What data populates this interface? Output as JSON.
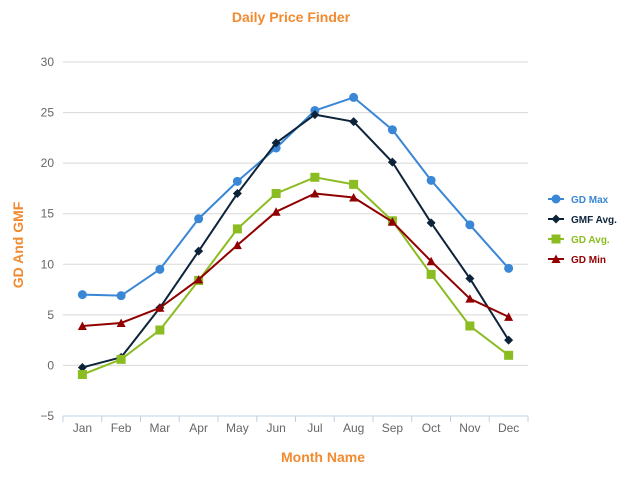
{
  "chart_data": {
    "type": "line",
    "title": "Daily Price Finder",
    "xlabel": "Month Name",
    "ylabel": "GD And GMF",
    "categories": [
      "Jan",
      "Feb",
      "Mar",
      "Apr",
      "May",
      "Jun",
      "Jul",
      "Aug",
      "Sep",
      "Oct",
      "Nov",
      "Dec"
    ],
    "ylim": [
      -5,
      30
    ],
    "yticks": [
      -5,
      0,
      5,
      10,
      15,
      20,
      25,
      30
    ],
    "ytick_labels": [
      "−5",
      "0",
      "5",
      "10",
      "15",
      "20",
      "25",
      "30"
    ],
    "grid": true,
    "legend_position": "right",
    "title_color": "#f28a30",
    "series": [
      {
        "name": "GD Max",
        "color": "#3a87d6",
        "marker": "circle",
        "values": [
          7.0,
          6.9,
          9.5,
          14.5,
          18.2,
          21.5,
          25.2,
          26.5,
          23.3,
          18.3,
          13.9,
          9.6
        ]
      },
      {
        "name": "GMF Avg.",
        "color": "#0d233a",
        "marker": "diamond",
        "values": [
          -0.2,
          0.8,
          5.7,
          11.3,
          17.0,
          22.0,
          24.8,
          24.1,
          20.1,
          14.1,
          8.6,
          2.5
        ]
      },
      {
        "name": "GD Avg.",
        "color": "#8bbc21",
        "marker": "square",
        "values": [
          -0.9,
          0.6,
          3.5,
          8.4,
          13.5,
          17.0,
          18.6,
          17.9,
          14.3,
          9.0,
          3.9,
          1.0
        ]
      },
      {
        "name": "GD Min",
        "color": "#910000",
        "marker": "triangle",
        "values": [
          3.9,
          4.2,
          5.7,
          8.5,
          11.9,
          15.2,
          17.0,
          16.6,
          14.2,
          10.3,
          6.6,
          4.8
        ]
      }
    ]
  }
}
